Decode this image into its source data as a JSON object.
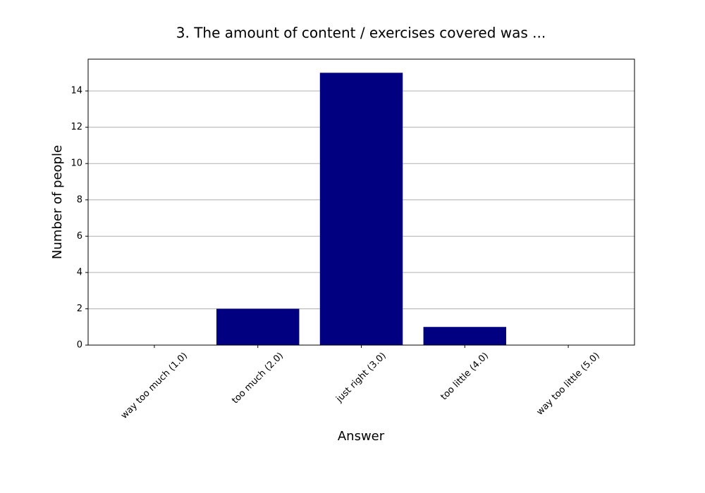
{
  "chart_data": {
    "type": "bar",
    "title": "3. The amount of content / exercises covered was ...",
    "x_label": "Answer",
    "y_label": "Number of people",
    "categories": [
      "way too much (1.0)",
      "too much (2.0)",
      "just right (3.0)",
      "too little (4.0)",
      "way too little (5.0)"
    ],
    "values": [
      0,
      2,
      15,
      1,
      0
    ],
    "color": "#000080",
    "ylim": [
      0,
      15.75
    ],
    "yticks": [
      0,
      2,
      4,
      6,
      8,
      10,
      12,
      14
    ],
    "grid": true
  }
}
